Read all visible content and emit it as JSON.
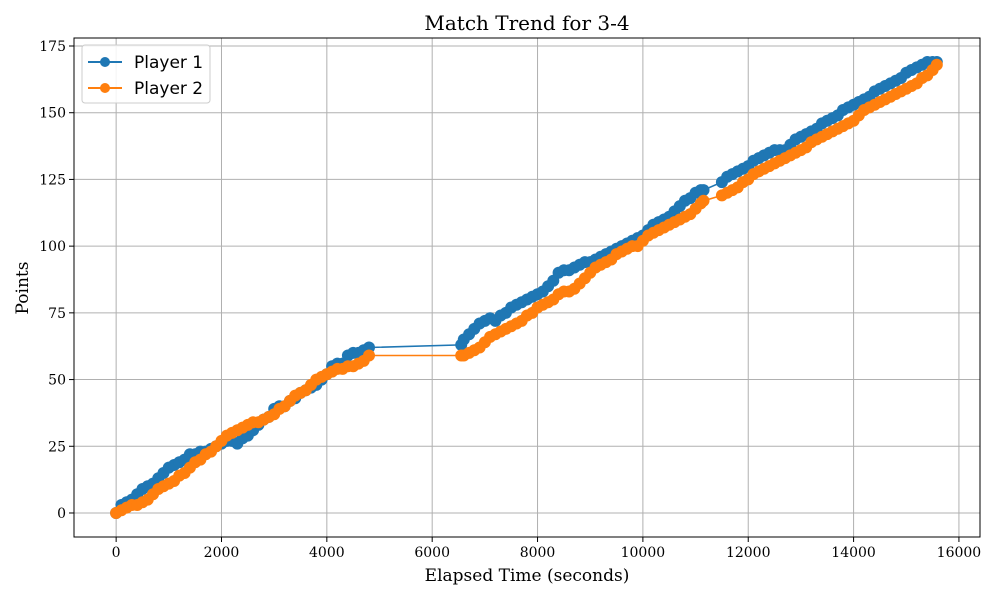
{
  "chart_data": {
    "type": "line",
    "title": "Match Trend for 3-4",
    "xlabel": "Elapsed Time (seconds)",
    "ylabel": "Points",
    "xlim": [
      -800,
      16400
    ],
    "ylim": [
      -9,
      178
    ],
    "xticks": [
      0,
      2000,
      4000,
      6000,
      8000,
      10000,
      12000,
      14000,
      16000
    ],
    "yticks": [
      0,
      25,
      50,
      75,
      100,
      125,
      150,
      175
    ],
    "grid": true,
    "legend_position": "top-left",
    "series": [
      {
        "name": "Player 1",
        "color": "#1f77b4",
        "points": [
          [
            0,
            0
          ],
          [
            100,
            3
          ],
          [
            200,
            4
          ],
          [
            300,
            5
          ],
          [
            400,
            7
          ],
          [
            500,
            9
          ],
          [
            600,
            10
          ],
          [
            700,
            11
          ],
          [
            800,
            13
          ],
          [
            900,
            15
          ],
          [
            1000,
            17
          ],
          [
            1100,
            18
          ],
          [
            1200,
            19
          ],
          [
            1300,
            20
          ],
          [
            1400,
            22
          ],
          [
            1500,
            22
          ],
          [
            1600,
            23
          ],
          [
            1700,
            23
          ],
          [
            1800,
            24
          ],
          [
            1900,
            25
          ],
          [
            2000,
            26
          ],
          [
            2100,
            27
          ],
          [
            2200,
            27
          ],
          [
            2300,
            26
          ],
          [
            2400,
            28
          ],
          [
            2500,
            29
          ],
          [
            2600,
            31
          ],
          [
            2700,
            33
          ],
          [
            2800,
            35
          ],
          [
            2900,
            36
          ],
          [
            3000,
            39
          ],
          [
            3100,
            40
          ],
          [
            3200,
            40
          ],
          [
            3300,
            42
          ],
          [
            3400,
            43
          ],
          [
            3500,
            45
          ],
          [
            3600,
            46
          ],
          [
            3700,
            47
          ],
          [
            3800,
            48
          ],
          [
            3900,
            50
          ],
          [
            4000,
            52
          ],
          [
            4100,
            55
          ],
          [
            4200,
            56
          ],
          [
            4300,
            56
          ],
          [
            4400,
            59
          ],
          [
            4500,
            60
          ],
          [
            4600,
            60
          ],
          [
            4700,
            61
          ],
          [
            4800,
            62
          ],
          [
            6550,
            63
          ],
          [
            6600,
            65
          ],
          [
            6700,
            67
          ],
          [
            6800,
            69
          ],
          [
            6900,
            71
          ],
          [
            7000,
            72
          ],
          [
            7100,
            73
          ],
          [
            7200,
            72
          ],
          [
            7300,
            74
          ],
          [
            7400,
            75
          ],
          [
            7500,
            77
          ],
          [
            7600,
            78
          ],
          [
            7700,
            79
          ],
          [
            7800,
            80
          ],
          [
            7900,
            81
          ],
          [
            8000,
            82
          ],
          [
            8100,
            83
          ],
          [
            8200,
            85
          ],
          [
            8300,
            87
          ],
          [
            8400,
            90
          ],
          [
            8500,
            91
          ],
          [
            8600,
            91
          ],
          [
            8700,
            92
          ],
          [
            8800,
            93
          ],
          [
            8900,
            94
          ],
          [
            9000,
            94
          ],
          [
            9100,
            95
          ],
          [
            9200,
            96
          ],
          [
            9300,
            97
          ],
          [
            9400,
            98
          ],
          [
            9500,
            99
          ],
          [
            9600,
            100
          ],
          [
            9700,
            101
          ],
          [
            9800,
            102
          ],
          [
            9900,
            103
          ],
          [
            10000,
            104
          ],
          [
            10100,
            106
          ],
          [
            10200,
            108
          ],
          [
            10300,
            109
          ],
          [
            10400,
            110
          ],
          [
            10500,
            111
          ],
          [
            10600,
            113
          ],
          [
            10700,
            115
          ],
          [
            10800,
            117
          ],
          [
            10900,
            118
          ],
          [
            11000,
            120
          ],
          [
            11100,
            121
          ],
          [
            11150,
            121
          ],
          [
            11500,
            124
          ],
          [
            11600,
            126
          ],
          [
            11700,
            127
          ],
          [
            11800,
            128
          ],
          [
            11900,
            129
          ],
          [
            12000,
            130
          ],
          [
            12100,
            132
          ],
          [
            12200,
            133
          ],
          [
            12300,
            134
          ],
          [
            12400,
            135
          ],
          [
            12500,
            136
          ],
          [
            12600,
            136
          ],
          [
            12700,
            136
          ],
          [
            12800,
            138
          ],
          [
            12900,
            140
          ],
          [
            13000,
            141
          ],
          [
            13100,
            142
          ],
          [
            13200,
            143
          ],
          [
            13300,
            144
          ],
          [
            13400,
            146
          ],
          [
            13500,
            147
          ],
          [
            13600,
            148
          ],
          [
            13700,
            149
          ],
          [
            13800,
            151
          ],
          [
            13900,
            152
          ],
          [
            14000,
            153
          ],
          [
            14100,
            154
          ],
          [
            14200,
            155
          ],
          [
            14300,
            156
          ],
          [
            14400,
            158
          ],
          [
            14500,
            159
          ],
          [
            14600,
            160
          ],
          [
            14700,
            161
          ],
          [
            14800,
            162
          ],
          [
            14900,
            163
          ],
          [
            15000,
            165
          ],
          [
            15100,
            166
          ],
          [
            15200,
            167
          ],
          [
            15300,
            168
          ],
          [
            15400,
            169
          ],
          [
            15500,
            169
          ],
          [
            15580,
            169
          ]
        ]
      },
      {
        "name": "Player 2",
        "color": "#ff7f0e",
        "points": [
          [
            0,
            0
          ],
          [
            100,
            1
          ],
          [
            200,
            2
          ],
          [
            300,
            3
          ],
          [
            400,
            3
          ],
          [
            500,
            4
          ],
          [
            600,
            5
          ],
          [
            700,
            7
          ],
          [
            800,
            9
          ],
          [
            900,
            10
          ],
          [
            1000,
            11
          ],
          [
            1100,
            12
          ],
          [
            1200,
            14
          ],
          [
            1300,
            15
          ],
          [
            1400,
            17
          ],
          [
            1500,
            19
          ],
          [
            1600,
            20
          ],
          [
            1700,
            22
          ],
          [
            1800,
            23
          ],
          [
            1900,
            25
          ],
          [
            2000,
            27
          ],
          [
            2100,
            29
          ],
          [
            2200,
            30
          ],
          [
            2300,
            31
          ],
          [
            2400,
            32
          ],
          [
            2500,
            33
          ],
          [
            2600,
            34
          ],
          [
            2700,
            34
          ],
          [
            2800,
            35
          ],
          [
            2900,
            36
          ],
          [
            3000,
            37
          ],
          [
            3100,
            39
          ],
          [
            3200,
            40
          ],
          [
            3300,
            42
          ],
          [
            3400,
            44
          ],
          [
            3500,
            45
          ],
          [
            3600,
            46
          ],
          [
            3700,
            48
          ],
          [
            3800,
            50
          ],
          [
            3900,
            51
          ],
          [
            4000,
            52
          ],
          [
            4100,
            53
          ],
          [
            4200,
            54
          ],
          [
            4300,
            54
          ],
          [
            4400,
            55
          ],
          [
            4500,
            55
          ],
          [
            4600,
            56
          ],
          [
            4700,
            57
          ],
          [
            4800,
            59
          ],
          [
            6550,
            59
          ],
          [
            6600,
            59
          ],
          [
            6700,
            60
          ],
          [
            6800,
            61
          ],
          [
            6900,
            62
          ],
          [
            7000,
            64
          ],
          [
            7100,
            66
          ],
          [
            7200,
            67
          ],
          [
            7300,
            68
          ],
          [
            7400,
            69
          ],
          [
            7500,
            70
          ],
          [
            7600,
            71
          ],
          [
            7700,
            72
          ],
          [
            7800,
            74
          ],
          [
            7900,
            75
          ],
          [
            8000,
            77
          ],
          [
            8100,
            78
          ],
          [
            8200,
            79
          ],
          [
            8300,
            80
          ],
          [
            8400,
            82
          ],
          [
            8500,
            83
          ],
          [
            8600,
            83
          ],
          [
            8700,
            84
          ],
          [
            8800,
            86
          ],
          [
            8900,
            88
          ],
          [
            9000,
            90
          ],
          [
            9100,
            92
          ],
          [
            9200,
            93
          ],
          [
            9300,
            94
          ],
          [
            9400,
            95
          ],
          [
            9500,
            97
          ],
          [
            9600,
            98
          ],
          [
            9700,
            99
          ],
          [
            9800,
            100
          ],
          [
            9900,
            100
          ],
          [
            10000,
            102
          ],
          [
            10100,
            104
          ],
          [
            10200,
            105
          ],
          [
            10300,
            106
          ],
          [
            10400,
            107
          ],
          [
            10500,
            108
          ],
          [
            10600,
            109
          ],
          [
            10700,
            110
          ],
          [
            10800,
            111
          ],
          [
            10900,
            112
          ],
          [
            11000,
            114
          ],
          [
            11100,
            116
          ],
          [
            11150,
            117
          ],
          [
            11500,
            119
          ],
          [
            11600,
            120
          ],
          [
            11700,
            121
          ],
          [
            11800,
            122
          ],
          [
            11900,
            124
          ],
          [
            12000,
            125
          ],
          [
            12100,
            127
          ],
          [
            12200,
            128
          ],
          [
            12300,
            129
          ],
          [
            12400,
            130
          ],
          [
            12500,
            131
          ],
          [
            12600,
            132
          ],
          [
            12700,
            133
          ],
          [
            12800,
            134
          ],
          [
            12900,
            135
          ],
          [
            13000,
            136
          ],
          [
            13100,
            137
          ],
          [
            13200,
            139
          ],
          [
            13300,
            140
          ],
          [
            13400,
            141
          ],
          [
            13500,
            142
          ],
          [
            13600,
            143
          ],
          [
            13700,
            144
          ],
          [
            13800,
            145
          ],
          [
            13900,
            146
          ],
          [
            14000,
            147
          ],
          [
            14100,
            149
          ],
          [
            14200,
            151
          ],
          [
            14300,
            152
          ],
          [
            14400,
            153
          ],
          [
            14500,
            154
          ],
          [
            14600,
            155
          ],
          [
            14700,
            156
          ],
          [
            14800,
            157
          ],
          [
            14900,
            158
          ],
          [
            15000,
            159
          ],
          [
            15100,
            160
          ],
          [
            15200,
            161
          ],
          [
            15300,
            163
          ],
          [
            15400,
            164
          ],
          [
            15500,
            166
          ],
          [
            15580,
            168
          ]
        ]
      }
    ]
  }
}
